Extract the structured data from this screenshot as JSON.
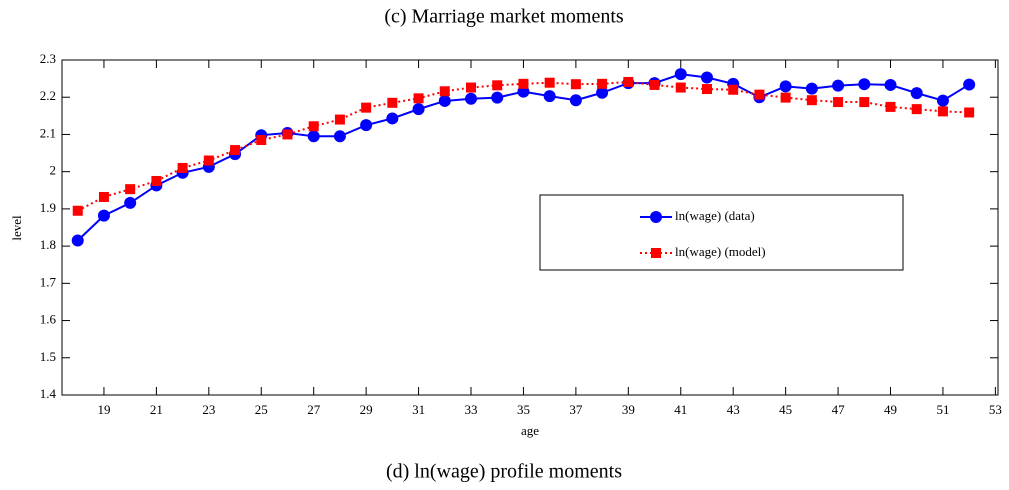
{
  "chart_data": {
    "type": "line",
    "heading": "(c) Marriage market moments",
    "caption": "(d) ln(wage) profile moments",
    "x_label": "age",
    "y_label": "level",
    "x": [
      18,
      19,
      20,
      21,
      22,
      23,
      24,
      25,
      26,
      27,
      28,
      29,
      30,
      31,
      32,
      33,
      34,
      35,
      36,
      37,
      38,
      39,
      40,
      41,
      42,
      43,
      44,
      45,
      46,
      47,
      48,
      49,
      50,
      51,
      52
    ],
    "series": [
      {
        "name": "ln(wage) (data)",
        "color": "#0000ff",
        "marker": "circle",
        "dash": false,
        "values": [
          1.815,
          1.882,
          1.916,
          1.963,
          1.997,
          2.013,
          2.047,
          2.098,
          2.104,
          2.095,
          2.095,
          2.125,
          2.143,
          2.168,
          2.19,
          2.196,
          2.199,
          2.215,
          2.203,
          2.192,
          2.212,
          2.238,
          2.238,
          2.262,
          2.253,
          2.236,
          2.2,
          2.229,
          2.223,
          2.231,
          2.235,
          2.233,
          2.211,
          2.191,
          2.234
        ]
      },
      {
        "name": "ln(wage) (model)",
        "color": "#ff0000",
        "marker": "square",
        "dash": true,
        "values": [
          1.895,
          1.932,
          1.953,
          1.975,
          2.01,
          2.03,
          2.058,
          2.085,
          2.1,
          2.122,
          2.14,
          2.172,
          2.185,
          2.197,
          2.216,
          2.226,
          2.232,
          2.236,
          2.239,
          2.235,
          2.236,
          2.241,
          2.233,
          2.226,
          2.222,
          2.22,
          2.207,
          2.199,
          2.192,
          2.187,
          2.187,
          2.174,
          2.168,
          2.162,
          2.159
        ]
      }
    ],
    "xlim": [
      17.4,
      53.1
    ],
    "ylim": [
      1.4,
      2.3
    ],
    "xticks": [
      19,
      21,
      23,
      25,
      27,
      29,
      31,
      33,
      35,
      37,
      39,
      41,
      43,
      45,
      47,
      49,
      51,
      53
    ],
    "yticks": [
      1.4,
      1.5,
      1.6,
      1.7,
      1.8,
      1.9,
      2,
      2.1,
      2.2,
      2.3
    ],
    "grid": false
  }
}
